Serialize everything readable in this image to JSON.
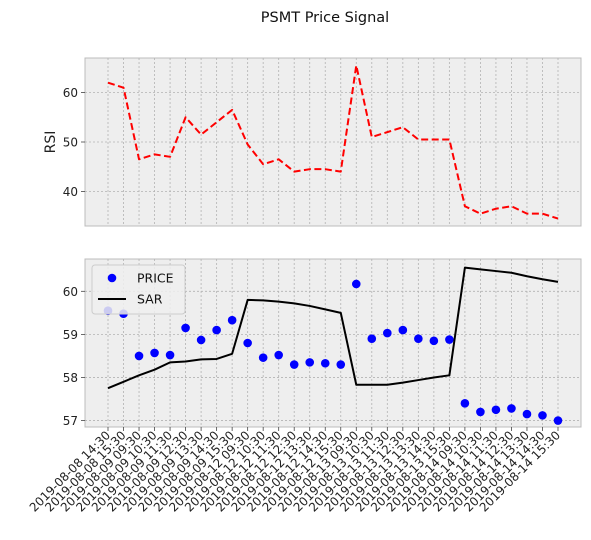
{
  "chart_data": {
    "title": "PSMT Price Signal",
    "x": [
      "2019-08-08 14:30",
      "2019-08-08 15:30",
      "2019-08-09 09:30",
      "2019-08-09 10:30",
      "2019-08-09 11:30",
      "2019-08-09 12:30",
      "2019-08-09 13:30",
      "2019-08-09 14:30",
      "2019-08-09 15:30",
      "2019-08-12 09:30",
      "2019-08-12 10:30",
      "2019-08-12 11:30",
      "2019-08-12 12:30",
      "2019-08-12 13:30",
      "2019-08-12 14:30",
      "2019-08-12 15:30",
      "2019-08-13 09:30",
      "2019-08-13 10:30",
      "2019-08-13 11:30",
      "2019-08-13 12:30",
      "2019-08-13 13:30",
      "2019-08-13 14:30",
      "2019-08-13 15:30",
      "2019-08-14 09:30",
      "2019-08-14 10:30",
      "2019-08-14 11:30",
      "2019-08-14 12:30",
      "2019-08-14 13:30",
      "2019-08-14 14:30",
      "2019-08-14 15:30"
    ],
    "panels": [
      {
        "type": "line",
        "ylabel": "RSI",
        "ylim": [
          33,
          67
        ],
        "yticks": [
          40,
          50,
          60
        ],
        "grid": true,
        "series": [
          {
            "color": "#ff0000",
            "style": "dashed",
            "values": [
              62.0,
              61.0,
              46.5,
              47.5,
              47.0,
              55.0,
              51.5,
              54.0,
              56.5,
              49.5,
              45.5,
              46.5,
              44.0,
              44.5,
              44.5,
              44.0,
              65.5,
              51.0,
              52.0,
              53.0,
              50.5,
              50.5,
              50.5,
              37.0,
              35.5,
              36.5,
              37.0,
              35.5,
              35.5,
              34.5
            ]
          }
        ]
      },
      {
        "type": "scatter+line",
        "ylim": [
          56.85,
          60.75
        ],
        "yticks": [
          57,
          58,
          59,
          60
        ],
        "grid": true,
        "legend_position": "upper-left",
        "series": [
          {
            "name": "PRICE",
            "type": "scatter",
            "color": "#0000ff",
            "values": [
              59.55,
              59.48,
              58.5,
              58.57,
              58.52,
              59.15,
              58.87,
              59.1,
              59.33,
              58.8,
              58.46,
              58.52,
              58.3,
              58.35,
              58.33,
              58.3,
              60.17,
              58.9,
              59.03,
              59.1,
              58.9,
              58.85,
              58.88,
              57.4,
              57.2,
              57.25,
              57.28,
              57.15,
              57.12,
              57.0
            ]
          },
          {
            "name": "SAR",
            "type": "line",
            "color": "#000000",
            "values": [
              57.75,
              57.9,
              58.05,
              58.18,
              58.35,
              58.37,
              58.42,
              58.43,
              58.55,
              59.8,
              59.79,
              59.76,
              59.72,
              59.66,
              59.58,
              59.5,
              57.83,
              57.83,
              57.83,
              57.88,
              57.94,
              58.0,
              58.05,
              60.55,
              60.51,
              60.47,
              60.43,
              60.35,
              60.28,
              60.22
            ]
          }
        ]
      }
    ]
  }
}
